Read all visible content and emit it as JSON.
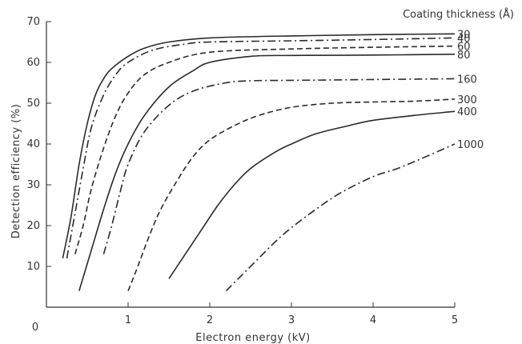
{
  "chart_data": {
    "type": "line",
    "title": "",
    "xlabel": "Electron energy (kV)",
    "ylabel": "Detection efficiency (%)",
    "legend_title": "Coating thickness (Å)",
    "xlim": [
      0,
      5
    ],
    "ylim": [
      0,
      70
    ],
    "x_ticks": [
      "1",
      "2",
      "3",
      "4",
      "5"
    ],
    "y_ticks": [
      "10",
      "20",
      "30",
      "40",
      "50",
      "60",
      "70"
    ],
    "origin_label": "0",
    "grid": false,
    "legend_placement": "right of curves",
    "series": [
      {
        "name": "30",
        "style": "solid",
        "points": [
          [
            0.2,
            12
          ],
          [
            0.3,
            22
          ],
          [
            0.4,
            35
          ],
          [
            0.5,
            45
          ],
          [
            0.6,
            52
          ],
          [
            0.7,
            56
          ],
          [
            0.8,
            58.5
          ],
          [
            1.0,
            61.5
          ],
          [
            1.2,
            63.5
          ],
          [
            1.5,
            65
          ],
          [
            2.0,
            66
          ],
          [
            3.0,
            66.5
          ],
          [
            4.0,
            66.8
          ],
          [
            5.0,
            67
          ]
        ]
      },
      {
        "name": "40",
        "style": "dashdot",
        "points": [
          [
            0.25,
            12
          ],
          [
            0.35,
            23
          ],
          [
            0.45,
            34
          ],
          [
            0.55,
            44
          ],
          [
            0.7,
            52
          ],
          [
            0.85,
            57
          ],
          [
            1.0,
            60
          ],
          [
            1.3,
            63
          ],
          [
            1.7,
            64.5
          ],
          [
            2.0,
            65
          ],
          [
            3.0,
            65.3
          ],
          [
            4.0,
            65.6
          ],
          [
            5.0,
            66
          ]
        ]
      },
      {
        "name": "60",
        "style": "dashed",
        "points": [
          [
            0.35,
            13
          ],
          [
            0.45,
            20
          ],
          [
            0.55,
            29
          ],
          [
            0.7,
            39
          ],
          [
            0.85,
            47
          ],
          [
            1.0,
            52.5
          ],
          [
            1.2,
            57
          ],
          [
            1.5,
            60
          ],
          [
            2.0,
            62.5
          ],
          [
            3.0,
            63.3
          ],
          [
            4.0,
            63.7
          ],
          [
            5.0,
            64
          ]
        ]
      },
      {
        "name": "80",
        "style": "solid",
        "points": [
          [
            0.4,
            4
          ],
          [
            0.55,
            14
          ],
          [
            0.7,
            24
          ],
          [
            0.85,
            33
          ],
          [
            1.0,
            40
          ],
          [
            1.2,
            47
          ],
          [
            1.5,
            54
          ],
          [
            1.8,
            58
          ],
          [
            2.0,
            60
          ],
          [
            2.5,
            61.5
          ],
          [
            3.0,
            61.7
          ],
          [
            4.0,
            61.8
          ],
          [
            5.0,
            62
          ]
        ]
      },
      {
        "name": "160",
        "style": "dashdot",
        "points": [
          [
            0.7,
            13
          ],
          [
            0.8,
            20
          ],
          [
            0.9,
            28
          ],
          [
            1.0,
            35
          ],
          [
            1.2,
            43
          ],
          [
            1.5,
            49.5
          ],
          [
            1.8,
            53
          ],
          [
            2.2,
            55
          ],
          [
            2.5,
            55.5
          ],
          [
            3.0,
            55.6
          ],
          [
            4.0,
            55.8
          ],
          [
            5.0,
            56
          ]
        ]
      },
      {
        "name": "300",
        "style": "dashed",
        "points": [
          [
            1.0,
            4
          ],
          [
            1.1,
            9
          ],
          [
            1.25,
            17
          ],
          [
            1.4,
            24
          ],
          [
            1.6,
            31
          ],
          [
            1.8,
            37
          ],
          [
            2.0,
            41
          ],
          [
            2.3,
            44.5
          ],
          [
            2.6,
            47
          ],
          [
            3.0,
            49
          ],
          [
            3.5,
            50
          ],
          [
            4.0,
            50.3
          ],
          [
            4.5,
            50.5
          ],
          [
            5.0,
            51
          ]
        ]
      },
      {
        "name": "400",
        "style": "solid",
        "points": [
          [
            1.5,
            7
          ],
          [
            1.7,
            13
          ],
          [
            1.9,
            19
          ],
          [
            2.1,
            25
          ],
          [
            2.3,
            30
          ],
          [
            2.5,
            34
          ],
          [
            2.8,
            38
          ],
          [
            3.0,
            40
          ],
          [
            3.3,
            42.5
          ],
          [
            3.7,
            44.5
          ],
          [
            4.0,
            45.8
          ],
          [
            4.5,
            47
          ],
          [
            5.0,
            48
          ]
        ]
      },
      {
        "name": "1000",
        "style": "dashdot",
        "points": [
          [
            2.2,
            4
          ],
          [
            2.4,
            8
          ],
          [
            2.6,
            12
          ],
          [
            2.8,
            16
          ],
          [
            3.0,
            19.5
          ],
          [
            3.3,
            24
          ],
          [
            3.6,
            28
          ],
          [
            4.0,
            32
          ],
          [
            4.3,
            34
          ],
          [
            4.6,
            36.5
          ],
          [
            5.0,
            40
          ]
        ]
      }
    ]
  }
}
